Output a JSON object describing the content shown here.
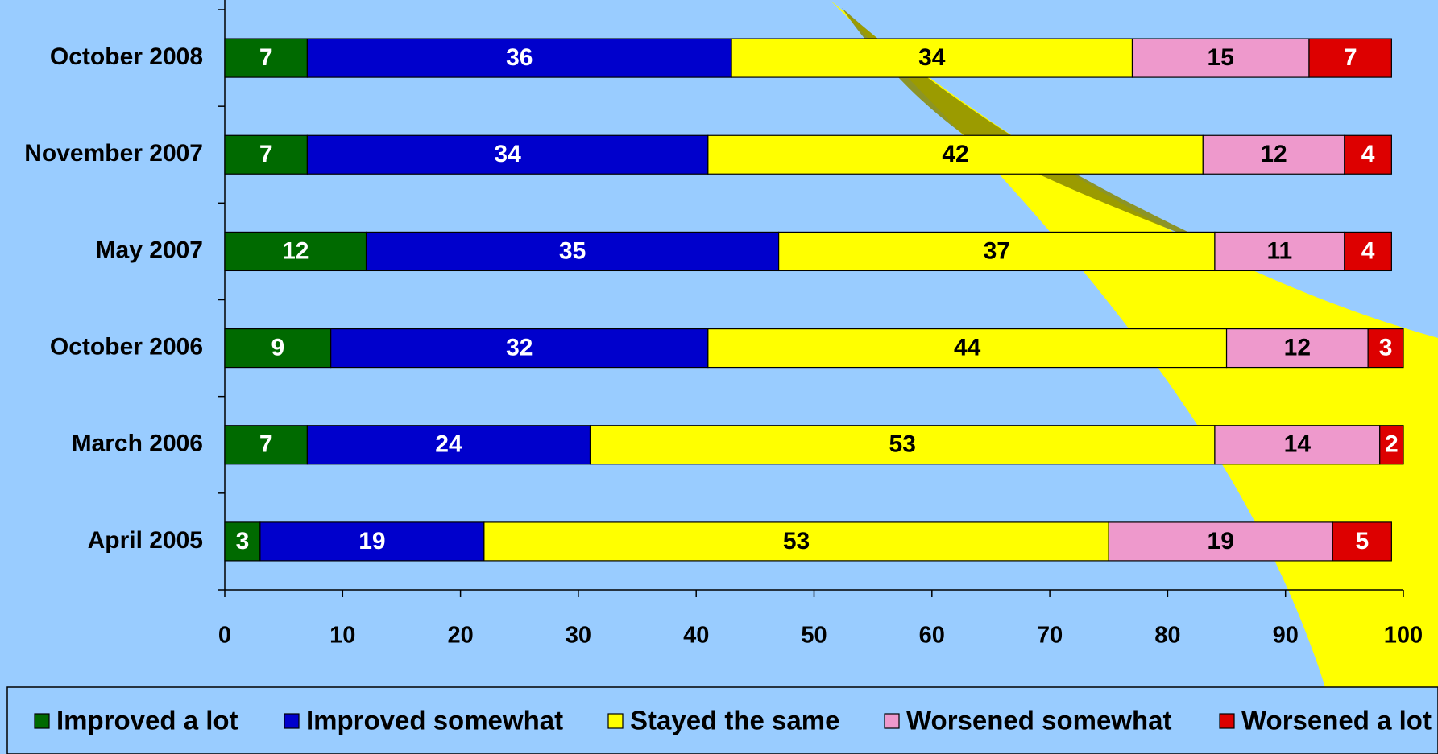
{
  "chart_data": {
    "type": "stacked-bar",
    "categories": [
      "October 2008",
      "November 2007",
      "May 2007",
      "October 2006",
      "March 2006",
      "April 2005"
    ],
    "series": [
      {
        "name": "Improved a lot",
        "color": "#006a00",
        "label_color": "#ffffff",
        "values": [
          7,
          7,
          12,
          9,
          7,
          3
        ]
      },
      {
        "name": "Improved somewhat",
        "color": "#0000cc",
        "label_color": "#ffffff",
        "values": [
          36,
          34,
          35,
          32,
          24,
          19
        ]
      },
      {
        "name": "Stayed the same",
        "color": "#ffff00",
        "label_color": "#000000",
        "values": [
          34,
          42,
          37,
          44,
          53,
          53
        ]
      },
      {
        "name": "Worsened somewhat",
        "color": "#ee99cc",
        "label_color": "#000000",
        "values": [
          15,
          12,
          11,
          12,
          14,
          19
        ]
      },
      {
        "name": "Worsened a lot",
        "color": "#dd0000",
        "label_color": "#ffffff",
        "values": [
          7,
          4,
          4,
          3,
          2,
          5
        ]
      }
    ],
    "xlim": [
      0,
      100
    ],
    "xticks": [
      0,
      10,
      20,
      30,
      40,
      50,
      60,
      70,
      80,
      90,
      100
    ],
    "legend": "bottom"
  }
}
